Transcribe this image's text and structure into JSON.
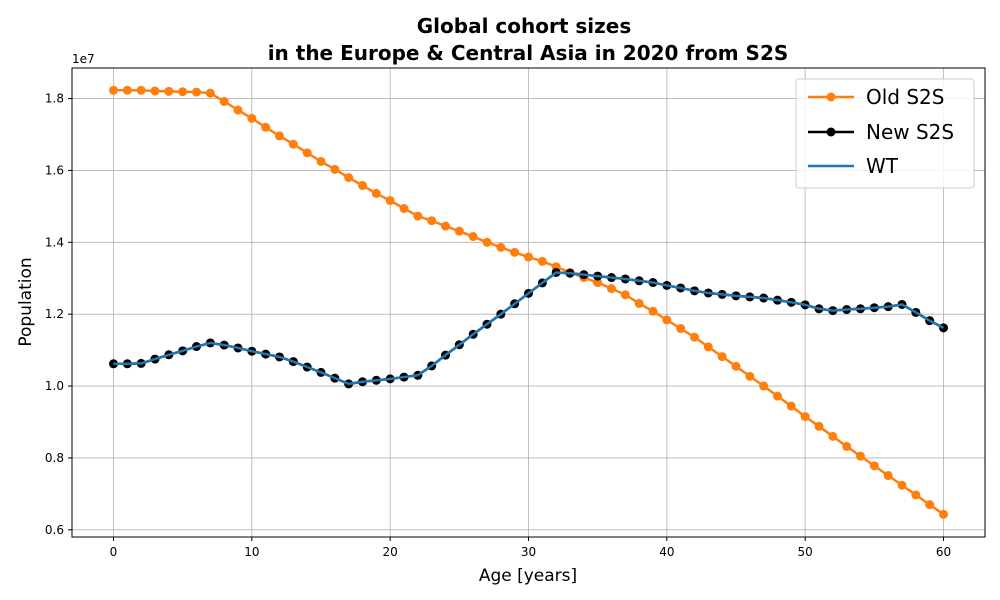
{
  "chart_data": {
    "type": "line",
    "title": [
      "Global cohort sizes",
      "in the Europe & Central Asia in 2020 from S2S"
    ],
    "xlabel": "Age [years]",
    "ylabel": "Population",
    "y_offset_label": "1e7",
    "xlim": [
      -3,
      63
    ],
    "ylim": [
      0.58,
      1.885
    ],
    "y_scale_factor": "1e7",
    "xticks": [
      0,
      10,
      20,
      30,
      40,
      50,
      60
    ],
    "yticks": [
      0.6,
      0.8,
      1.0,
      1.2,
      1.4,
      1.6,
      1.8
    ],
    "ytick_labels": [
      "0.6",
      "0.8",
      "1.0",
      "1.2",
      "1.4",
      "1.6",
      "1.8"
    ],
    "xtick_labels": [
      "0",
      "10",
      "20",
      "30",
      "40",
      "50",
      "60"
    ],
    "grid": true,
    "legend_position": "top-right",
    "x": [
      0,
      1,
      2,
      3,
      4,
      5,
      6,
      7,
      8,
      9,
      10,
      11,
      12,
      13,
      14,
      15,
      16,
      17,
      18,
      19,
      20,
      21,
      22,
      23,
      24,
      25,
      26,
      27,
      28,
      29,
      30,
      31,
      32,
      33,
      34,
      35,
      36,
      37,
      38,
      39,
      40,
      41,
      42,
      43,
      44,
      45,
      46,
      47,
      48,
      49,
      50,
      51,
      52,
      53,
      54,
      55,
      56,
      57,
      58,
      59,
      60
    ],
    "series": [
      {
        "name": "Old S2S",
        "color": "#ff7f0e",
        "marker": "circle",
        "values": [
          1.823,
          1.823,
          1.823,
          1.821,
          1.82,
          1.819,
          1.818,
          1.815,
          1.792,
          1.768,
          1.745,
          1.72,
          1.696,
          1.673,
          1.649,
          1.625,
          1.603,
          1.58,
          1.558,
          1.536,
          1.516,
          1.494,
          1.473,
          1.46,
          1.445,
          1.431,
          1.416,
          1.4,
          1.386,
          1.372,
          1.359,
          1.347,
          1.332,
          1.316,
          1.302,
          1.288,
          1.271,
          1.254,
          1.23,
          1.208,
          1.184,
          1.16,
          1.136,
          1.109,
          1.082,
          1.055,
          1.027,
          1.0,
          0.972,
          0.944,
          0.915,
          0.888,
          0.86,
          0.832,
          0.805,
          0.778,
          0.751,
          0.724,
          0.697,
          0.67,
          0.643
        ]
      },
      {
        "name": "New S2S",
        "color": "#000000",
        "marker": "circle",
        "values": [
          1.062,
          1.062,
          1.063,
          1.075,
          1.087,
          1.098,
          1.11,
          1.12,
          1.114,
          1.106,
          1.097,
          1.089,
          1.081,
          1.068,
          1.053,
          1.038,
          1.022,
          1.006,
          1.012,
          1.016,
          1.02,
          1.025,
          1.03,
          1.056,
          1.086,
          1.115,
          1.144,
          1.172,
          1.2,
          1.229,
          1.258,
          1.287,
          1.316,
          1.314,
          1.31,
          1.306,
          1.302,
          1.298,
          1.293,
          1.288,
          1.28,
          1.273,
          1.265,
          1.259,
          1.255,
          1.251,
          1.248,
          1.245,
          1.239,
          1.233,
          1.226,
          1.215,
          1.21,
          1.213,
          1.215,
          1.218,
          1.221,
          1.227,
          1.205,
          1.182,
          1.162
        ]
      },
      {
        "name": "WT",
        "color": "#1f77b4",
        "marker": "none",
        "values": [
          1.062,
          1.062,
          1.063,
          1.075,
          1.087,
          1.098,
          1.11,
          1.12,
          1.114,
          1.106,
          1.097,
          1.089,
          1.081,
          1.068,
          1.053,
          1.038,
          1.022,
          1.006,
          1.012,
          1.016,
          1.02,
          1.025,
          1.03,
          1.056,
          1.086,
          1.115,
          1.144,
          1.172,
          1.2,
          1.229,
          1.258,
          1.287,
          1.316,
          1.314,
          1.31,
          1.306,
          1.302,
          1.298,
          1.293,
          1.288,
          1.28,
          1.273,
          1.265,
          1.259,
          1.255,
          1.251,
          1.248,
          1.245,
          1.239,
          1.233,
          1.226,
          1.215,
          1.21,
          1.213,
          1.215,
          1.218,
          1.221,
          1.227,
          1.205,
          1.182,
          1.162
        ]
      }
    ]
  }
}
